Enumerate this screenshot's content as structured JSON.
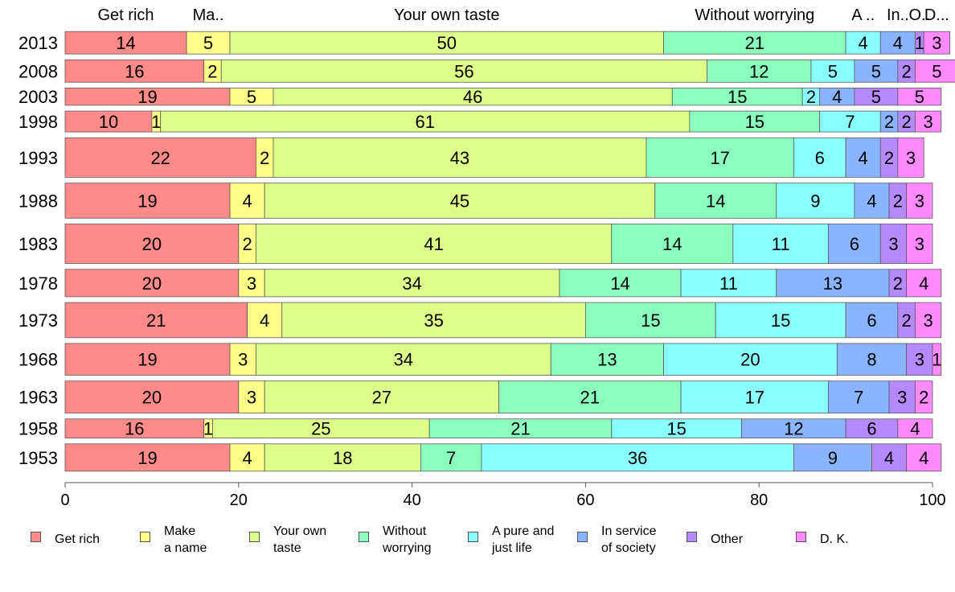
{
  "chart_data": {
    "type": "bar",
    "orientation": "horizontal",
    "stacked": true,
    "categories": [
      "2013",
      "2008",
      "2003",
      "1998",
      "1993",
      "1988",
      "1983",
      "1978",
      "1973",
      "1968",
      "1963",
      "1958",
      "1953"
    ],
    "relative_bar_thickness": [
      0.0645,
      0.0645,
      0.0495,
      0.06,
      0.1135,
      0.1009,
      0.1135,
      0.0787,
      0.1009,
      0.0912,
      0.0922,
      0.055,
      0.0785
    ],
    "series": [
      {
        "name": "Get rich",
        "color": "#ff8a8a",
        "values": [
          14,
          16,
          19,
          10,
          22,
          19,
          20,
          20,
          21,
          19,
          20,
          16,
          19
        ]
      },
      {
        "name": "Make a name",
        "color": "#ffff8a",
        "values": [
          5,
          2,
          5,
          1,
          2,
          4,
          2,
          3,
          4,
          3,
          3,
          1,
          4
        ]
      },
      {
        "name": "Your own taste",
        "color": "#ddff8a",
        "values": [
          50,
          56,
          46,
          61,
          43,
          45,
          41,
          34,
          35,
          34,
          27,
          25,
          18
        ]
      },
      {
        "name": "Without worrying",
        "color": "#8affbe",
        "values": [
          21,
          12,
          15,
          15,
          17,
          14,
          14,
          14,
          15,
          13,
          21,
          21,
          7
        ]
      },
      {
        "name": "A pure and just life",
        "color": "#8affff",
        "values": [
          4,
          5,
          2,
          7,
          6,
          9,
          11,
          11,
          15,
          20,
          17,
          15,
          36
        ]
      },
      {
        "name": "In service of society",
        "color": "#8ab4ff",
        "values": [
          4,
          5,
          4,
          2,
          4,
          4,
          6,
          13,
          6,
          8,
          7,
          12,
          9
        ]
      },
      {
        "name": "Other",
        "color": "#b48aff",
        "values": [
          1,
          2,
          5,
          2,
          2,
          2,
          3,
          2,
          2,
          3,
          3,
          6,
          4
        ]
      },
      {
        "name": "D. K.",
        "color": "#ff8aff",
        "values": [
          3,
          5,
          5,
          3,
          3,
          3,
          3,
          4,
          3,
          1,
          2,
          4,
          4
        ]
      }
    ],
    "top_labels": [
      "Get rich",
      "Ma..",
      "Your own taste",
      "Without worrying",
      "A ..",
      "In..",
      "O..",
      "D..."
    ],
    "legend_labels": [
      "Get rich",
      "Make\na name",
      "Your own\ntaste",
      "Without\nworrying",
      "A pure and\njust life",
      "In service\nof society",
      "Other",
      "D. K."
    ],
    "xlim": [
      0,
      100
    ],
    "xticks": [
      0,
      20,
      40,
      60,
      80,
      100
    ],
    "legend_position": "bottom",
    "grid": false
  }
}
